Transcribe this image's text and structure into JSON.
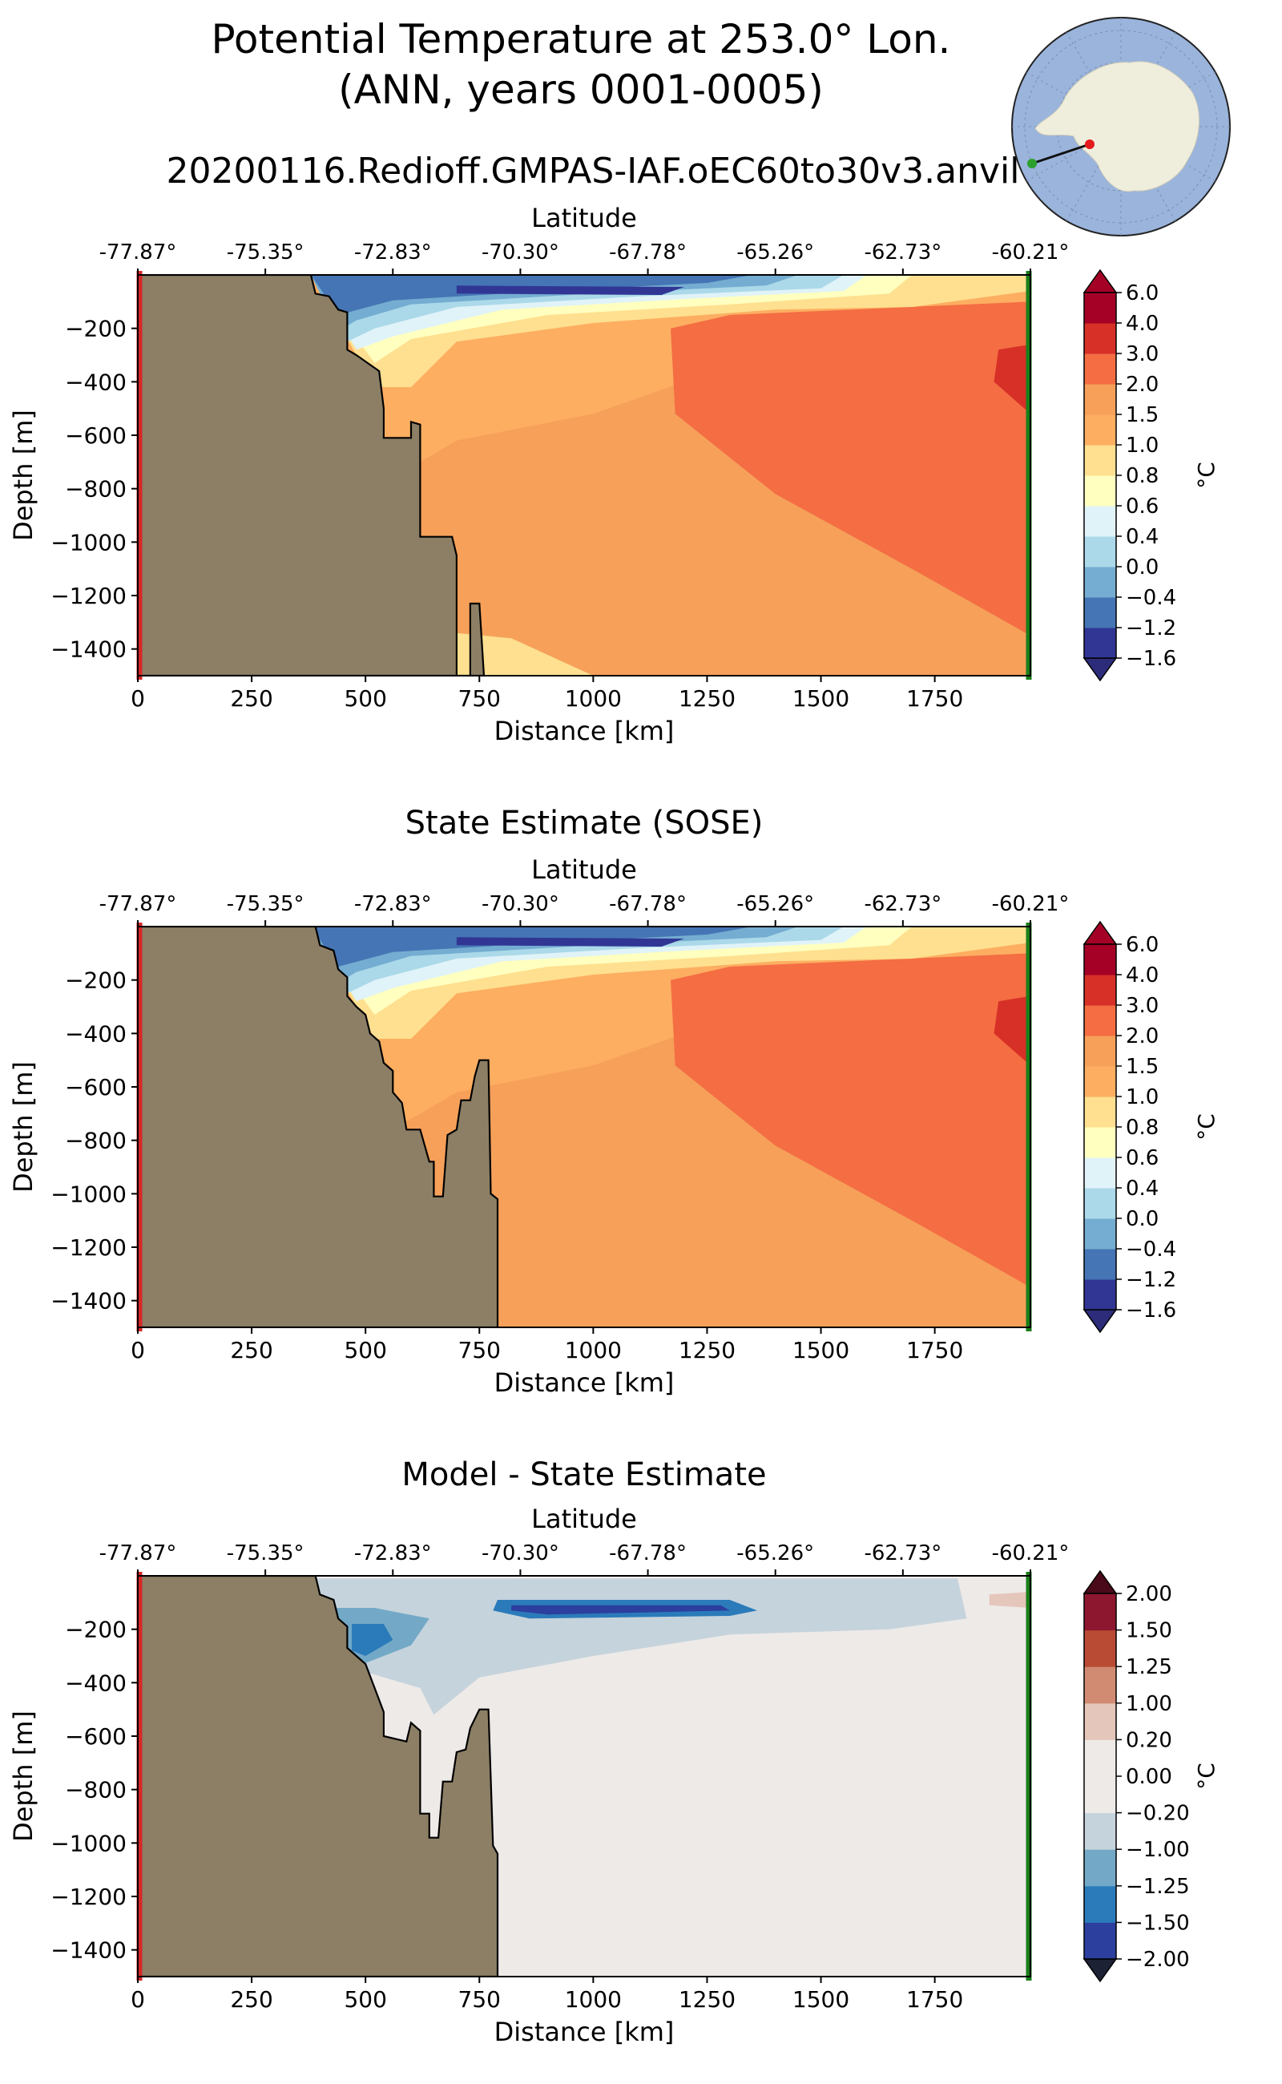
{
  "figure": {
    "title_line1": "Potential Temperature at 253.0° Lon.",
    "title_line2": "(ANN, years 0001-0005)",
    "run_name": "20200116.Redioff.GMPAS-IAF.oEC60to30v3.anvil"
  },
  "inset_map": {
    "description_icon": "antarctica-polar-stereographic-map-icon",
    "transect_start_color": "#e41a1c",
    "transect_end_color": "#2ca02c"
  },
  "colors": {
    "land": "#8c7f65",
    "start_line": "#d62728",
    "end_line": "#1a7f1a"
  },
  "chart_data": [
    {
      "type": "contourf",
      "title": "",
      "xlabel": "Distance [km]",
      "ylabel": "Depth [m]",
      "top_xlabel": "Latitude",
      "xlim": [
        0,
        1960
      ],
      "ylim": [
        -1500,
        0
      ],
      "x_ticks": [
        "0",
        "250",
        "500",
        "750",
        "1000",
        "1250",
        "1500",
        "1750"
      ],
      "y_ticks": [
        "−200",
        "−400",
        "−600",
        "−800",
        "−1000",
        "−1200",
        "−1400"
      ],
      "lat_ticks": [
        "-77.87°",
        "-75.35°",
        "-72.83°",
        "-70.30°",
        "-67.78°",
        "-65.26°",
        "-62.73°",
        "-60.21°"
      ],
      "colorbar": {
        "label": "°C",
        "levels": [
          "−1.6",
          "−1.2",
          "−0.4",
          "0.0",
          "0.4",
          "0.6",
          "0.8",
          "1.0",
          "1.5",
          "2.0",
          "3.0",
          "4.0",
          "6.0"
        ],
        "colors": [
          "#313695",
          "#4575b4",
          "#74add1",
          "#abd9e9",
          "#e0f3f8",
          "#ffffbf",
          "#fee090",
          "#fdae61",
          "#f6a05a",
          "#f46d43",
          "#d73027",
          "#a50026"
        ],
        "extend": "both"
      },
      "bathymetry_km_depth": [
        [
          0,
          0
        ],
        [
          380,
          0
        ],
        [
          390,
          -70
        ],
        [
          420,
          -80
        ],
        [
          440,
          -130
        ],
        [
          460,
          -140
        ],
        [
          460,
          -180
        ],
        [
          460,
          -280
        ],
        [
          480,
          -300
        ],
        [
          530,
          -360
        ],
        [
          540,
          -500
        ],
        [
          540,
          -610
        ],
        [
          600,
          -610
        ],
        [
          600,
          -550
        ],
        [
          620,
          -560
        ],
        [
          620,
          -980
        ],
        [
          690,
          -980
        ],
        [
          700,
          -1050
        ],
        [
          700,
          -1500
        ],
        [
          730,
          -1500
        ],
        [
          730,
          -1230
        ],
        [
          750,
          -1230
        ],
        [
          760,
          -1500
        ]
      ]
    },
    {
      "type": "contourf",
      "title": "State Estimate (SOSE)",
      "xlabel": "Distance [km]",
      "ylabel": "Depth [m]",
      "top_xlabel": "Latitude",
      "xlim": [
        0,
        1960
      ],
      "ylim": [
        -1500,
        0
      ],
      "x_ticks": [
        "0",
        "250",
        "500",
        "750",
        "1000",
        "1250",
        "1500",
        "1750"
      ],
      "y_ticks": [
        "−200",
        "−400",
        "−600",
        "−800",
        "−1000",
        "−1200",
        "−1400"
      ],
      "lat_ticks": [
        "-77.87°",
        "-75.35°",
        "-72.83°",
        "-70.30°",
        "-67.78°",
        "-65.26°",
        "-62.73°",
        "-60.21°"
      ],
      "colorbar": {
        "label": "°C",
        "levels": [
          "−1.6",
          "−1.2",
          "−0.4",
          "0.0",
          "0.4",
          "0.6",
          "0.8",
          "1.0",
          "1.5",
          "2.0",
          "3.0",
          "4.0",
          "6.0"
        ],
        "colors": [
          "#313695",
          "#4575b4",
          "#74add1",
          "#abd9e9",
          "#e0f3f8",
          "#ffffbf",
          "#fee090",
          "#fdae61",
          "#f6a05a",
          "#f46d43",
          "#d73027",
          "#a50026"
        ],
        "extend": "both"
      }
    },
    {
      "type": "contourf",
      "title": "Model - State Estimate",
      "xlabel": "Distance [km]",
      "ylabel": "Depth [m]",
      "top_xlabel": "Latitude",
      "xlim": [
        0,
        1960
      ],
      "ylim": [
        -1500,
        0
      ],
      "x_ticks": [
        "0",
        "250",
        "500",
        "750",
        "1000",
        "1250",
        "1500",
        "1750"
      ],
      "y_ticks": [
        "−200",
        "−400",
        "−600",
        "−800",
        "−1000",
        "−1200",
        "−1400"
      ],
      "lat_ticks": [
        "-77.87°",
        "-75.35°",
        "-72.83°",
        "-70.30°",
        "-67.78°",
        "-65.26°",
        "-62.73°",
        "-60.21°"
      ],
      "colorbar": {
        "label": "°C",
        "levels": [
          "−2.00",
          "−1.50",
          "−1.25",
          "−1.00",
          "−0.20",
          "0.00",
          "0.20",
          "1.00",
          "1.25",
          "1.50",
          "2.00"
        ],
        "colors": [
          "#2c3e9e",
          "#2b7bba",
          "#73a9c7",
          "#c5d3dc",
          "#eeeae8",
          "#eeeae8",
          "#e5c6bb",
          "#d08b72",
          "#b94b34",
          "#8e1730"
        ],
        "extend": "both"
      }
    }
  ]
}
